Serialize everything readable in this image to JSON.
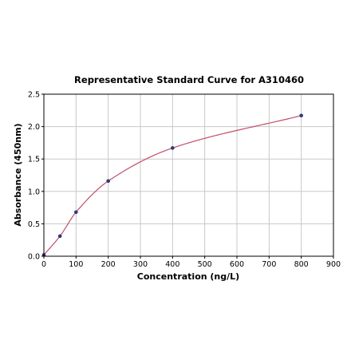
{
  "chart_data": {
    "type": "scatter",
    "title": "Representative Standard Curve for A310460",
    "xlabel": "Concentration (ng/L)",
    "ylabel": "Absorbance (450nm)",
    "xlim": [
      0,
      900
    ],
    "ylim": [
      0,
      2.5
    ],
    "x_ticks": [
      0,
      100,
      200,
      300,
      400,
      500,
      600,
      700,
      800,
      900
    ],
    "y_ticks": [
      0.0,
      0.5,
      1.0,
      1.5,
      2.0,
      2.5
    ],
    "x_tick_labels": [
      "0",
      "100",
      "200",
      "300",
      "400",
      "500",
      "600",
      "700",
      "800",
      "900"
    ],
    "y_tick_labels": [
      "0.0",
      "0.5",
      "1.0",
      "1.5",
      "2.0",
      "2.5"
    ],
    "grid": true,
    "points": {
      "x": [
        0,
        50,
        100,
        200,
        400,
        800
      ],
      "y": [
        0.02,
        0.31,
        0.68,
        1.16,
        1.67,
        2.17
      ]
    },
    "fit_curve": {
      "x_range": [
        0,
        800
      ],
      "color": "#c0506a"
    },
    "point_color": "#2b3a7a"
  }
}
